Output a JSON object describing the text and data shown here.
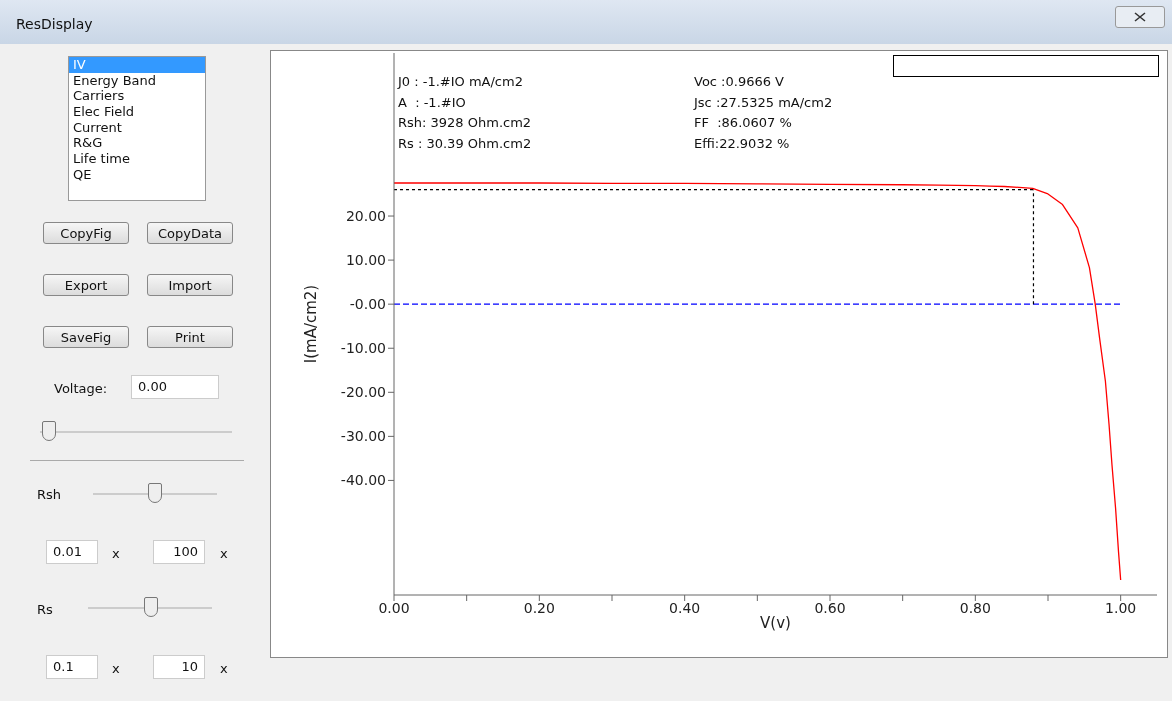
{
  "chart_data": [
    {
      "type": "line",
      "xlabel": "V(v)",
      "ylabel": "I(mA/cm2)",
      "x": [
        0,
        0.1,
        0.2,
        0.3,
        0.4,
        0.5,
        0.6,
        0.7,
        0.75,
        0.8,
        0.82,
        0.84,
        0.86,
        0.879,
        0.899,
        0.92,
        0.941,
        0.957,
        0.965,
        0.971,
        0.979,
        0.984,
        0.988,
        0.993,
        0.997,
        1.0
      ],
      "series": [
        {
          "color": "#ff0000",
          "values": [
            27.5,
            27.5,
            27.5,
            27.4,
            27.4,
            27.3,
            27.2,
            27.1,
            27.0,
            26.9,
            26.8,
            26.7,
            26.5,
            26.3,
            25.1,
            22.6,
            17.3,
            8.3,
            0,
            -7.7,
            -17.5,
            -27.3,
            -36.4,
            -46.3,
            -56.1,
            -62.6
          ]
        }
      ],
      "xlim": [
        0,
        1.05
      ],
      "xticks": [
        {
          "value": 0,
          "label": "0.00"
        },
        {
          "value": 0.1,
          "label": null
        },
        {
          "value": 0.2,
          "label": "0.20"
        },
        {
          "value": 0.3,
          "label": null
        },
        {
          "value": 0.4,
          "label": "0.40"
        },
        {
          "value": 0.5,
          "label": null
        },
        {
          "value": 0.6,
          "label": "0.60"
        },
        {
          "value": 0.7,
          "label": null
        },
        {
          "value": 0.8,
          "label": "0.80"
        },
        {
          "value": 0.9,
          "label": null
        },
        {
          "value": 1,
          "label": "1.00"
        }
      ],
      "ylim": [
        -66,
        57
      ],
      "yticks": [
        {
          "value": -40,
          "label": "-40.00"
        },
        {
          "value": -30,
          "label": "-30.00"
        },
        {
          "value": -20,
          "label": "-20.00"
        },
        {
          "value": -10,
          "label": "-10.00"
        },
        {
          "value": 0,
          "label": "-0.00"
        },
        {
          "value": 10,
          "label": "10.00"
        },
        {
          "value": 20,
          "label": "20.00"
        }
      ],
      "ref_lines": [
        {
          "axis": "y",
          "value": 0,
          "color": "#0000ff",
          "line_style": "dashed"
        },
        {
          "axis": "y",
          "value": 26.0,
          "color": "#000000",
          "line_style": "dotted"
        },
        {
          "axis": "x",
          "value": 0.88,
          "color": "#000000",
          "line_style": "dotted"
        }
      ],
      "annotations": [
        "J0 : -1.#IO mA/cm2",
        "A  : -1.#IO",
        "Rsh: 3928 Ohm.cm2",
        "Rs : 30.39 Ohm.cm2",
        "Voc :0.9666 V",
        "Jsc :27.5325 mA/cm2",
        "FF  :86.0607 %",
        "Effi:22.9032 %"
      ]
    },
    {
      "type": "other",
      "title": "ResDisplay",
      "annotations": [
        "IV",
        "Energy Band",
        "Carriers",
        "Elec Field",
        "Current",
        "R&G",
        "Life time",
        "QE",
        "CopyFig",
        "CopyData",
        "Export",
        "Import",
        "SaveFig",
        "Print",
        "Voltage:",
        "0.00",
        "Rsh",
        "0.01",
        "x",
        "100",
        "x",
        "Rs",
        "0.1",
        "x",
        "10",
        "x"
      ]
    }
  ]
}
